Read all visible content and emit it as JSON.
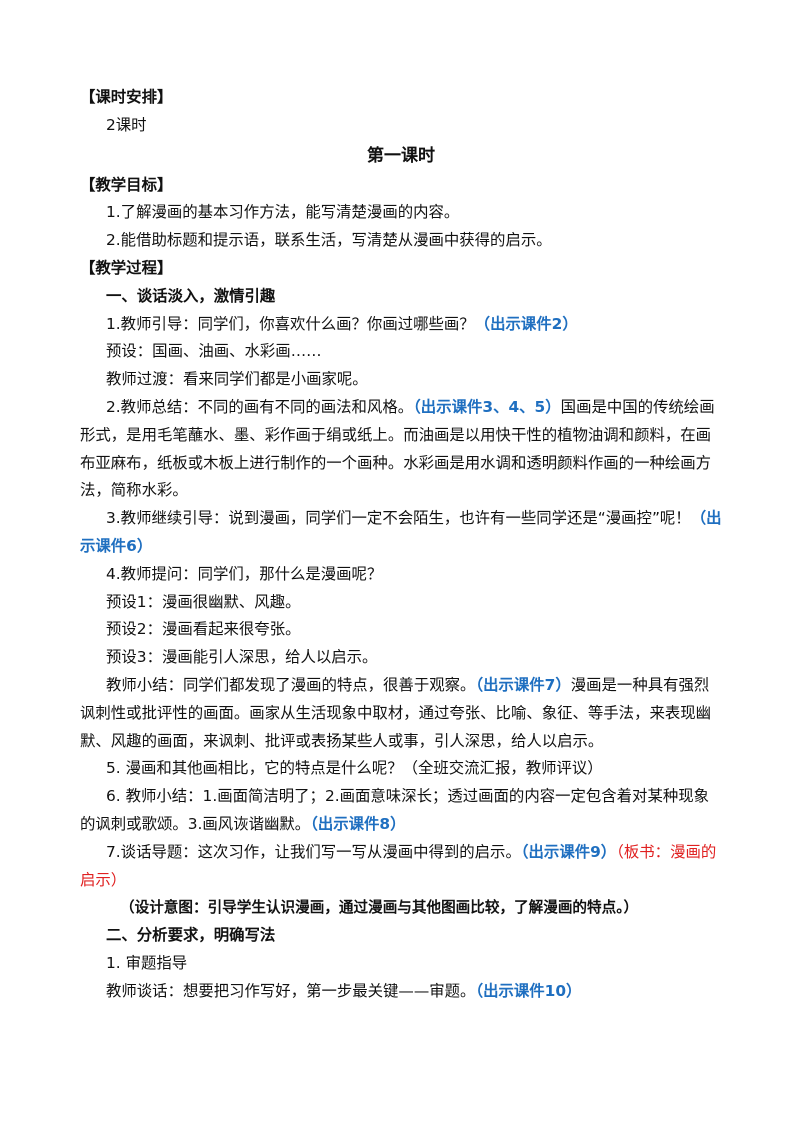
{
  "paragraphs": [
    {
      "kind": "heading",
      "runs": [
        {
          "text": "【课时安排】",
          "style": "plain"
        }
      ]
    },
    {
      "kind": "body",
      "runs": [
        {
          "text": "2课时",
          "style": "plain"
        }
      ]
    },
    {
      "kind": "title",
      "runs": [
        {
          "text": "第一课时",
          "style": "plain"
        }
      ]
    },
    {
      "kind": "heading",
      "runs": [
        {
          "text": "【教学目标】",
          "style": "plain"
        }
      ]
    },
    {
      "kind": "body",
      "runs": [
        {
          "text": "1.了解漫画的基本习作方法，能写清楚漫画的内容。",
          "style": "plain"
        }
      ]
    },
    {
      "kind": "body",
      "runs": [
        {
          "text": "2.能借助标题和提示语，联系生活，写清楚从漫画中获得的启示。",
          "style": "plain"
        }
      ]
    },
    {
      "kind": "heading",
      "runs": [
        {
          "text": "【教学过程】",
          "style": "plain"
        }
      ]
    },
    {
      "kind": "subheading",
      "runs": [
        {
          "text": "一、谈话淡入，激情引趣",
          "style": "plain"
        }
      ]
    },
    {
      "kind": "body",
      "runs": [
        {
          "text": "1.教师引导：同学们，你喜欢什么画？你画过哪些画？",
          "style": "plain"
        },
        {
          "text": "（出示课件2）",
          "style": "blue"
        }
      ]
    },
    {
      "kind": "body",
      "runs": [
        {
          "text": "预设：国画、油画、水彩画……",
          "style": "plain"
        }
      ]
    },
    {
      "kind": "body",
      "runs": [
        {
          "text": "教师过渡：看来同学们都是小画家呢。",
          "style": "plain"
        }
      ]
    },
    {
      "kind": "body",
      "runs": [
        {
          "text": "2.教师总结：不同的画有不同的画法和风格。",
          "style": "plain"
        },
        {
          "text": "（出示课件3、4、5）",
          "style": "blue"
        },
        {
          "text": "国画是中国的传统绘画形式，是用毛笔蘸水、墨、彩作画于绢或纸上。而油画是以用快干性的植物油调和颜料，在画布亚麻布，纸板或木板上进行制作的一个画种。水彩画是用水调和透明颜料作画的一种绘画方法，简称水彩。",
          "style": "plain"
        }
      ]
    },
    {
      "kind": "body",
      "runs": [
        {
          "text": "3.教师继续引导：说到漫画，同学们一定不会陌生，也许有一些同学还是“漫画控”呢！",
          "style": "plain"
        },
        {
          "text": "（出示课件6）",
          "style": "blue"
        }
      ]
    },
    {
      "kind": "body",
      "runs": [
        {
          "text": "4.教师提问：同学们，那什么是漫画呢？",
          "style": "plain"
        }
      ]
    },
    {
      "kind": "body",
      "runs": [
        {
          "text": "预设1：漫画很幽默、风趣。",
          "style": "plain"
        }
      ]
    },
    {
      "kind": "body",
      "runs": [
        {
          "text": "预设2：漫画看起来很夸张。",
          "style": "plain"
        }
      ]
    },
    {
      "kind": "body",
      "runs": [
        {
          "text": "预设3：漫画能引人深思，给人以启示。",
          "style": "plain"
        }
      ]
    },
    {
      "kind": "body",
      "runs": [
        {
          "text": "教师小结：同学们都发现了漫画的特点，很善于观察。",
          "style": "plain"
        },
        {
          "text": "（出示课件7）",
          "style": "blue"
        },
        {
          "text": "漫画是一种具有强烈讽刺性或批评性的画面。画家从生活现象中取材，通过夸张、比喻、象征、等手法，来表现幽默、风趣的画面，来讽刺、批评或表扬某些人或事，引人深思，给人以启示。",
          "style": "plain"
        }
      ]
    },
    {
      "kind": "body",
      "runs": [
        {
          "text": "5. 漫画和其他画相比，它的特点是什么呢？（全班交流汇报，教师评议）",
          "style": "plain"
        }
      ]
    },
    {
      "kind": "body",
      "runs": [
        {
          "text": "6. 教师小结：1.画面简洁明了；2.画面意味深长；透过画面的内容一定包含着对某种现象的讽刺或歌颂。3.画风诙谐幽默。",
          "style": "plain"
        },
        {
          "text": "（出示课件8）",
          "style": "blue"
        }
      ]
    },
    {
      "kind": "body",
      "runs": [
        {
          "text": "7.谈话导题：这次习作，让我们写一写从漫画中得到的启示。",
          "style": "plain"
        },
        {
          "text": "（出示课件9）",
          "style": "blue"
        },
        {
          "text": "（板书：漫画的启示）",
          "style": "red"
        }
      ]
    },
    {
      "kind": "note",
      "runs": [
        {
          "text": "（设计意图：引导学生认识漫画，通过漫画与其他图画比较，了解漫画的特点。）",
          "style": "plain"
        }
      ]
    },
    {
      "kind": "subheading",
      "runs": [
        {
          "text": "二、分析要求，明确写法",
          "style": "plain"
        }
      ]
    },
    {
      "kind": "body",
      "runs": [
        {
          "text": "1. 审题指导",
          "style": "plain"
        }
      ]
    },
    {
      "kind": "body",
      "runs": [
        {
          "text": "教师谈话：想要把习作写好，第一步最关键——审题。",
          "style": "plain"
        },
        {
          "text": "（出示课件10）",
          "style": "blue"
        }
      ]
    }
  ]
}
